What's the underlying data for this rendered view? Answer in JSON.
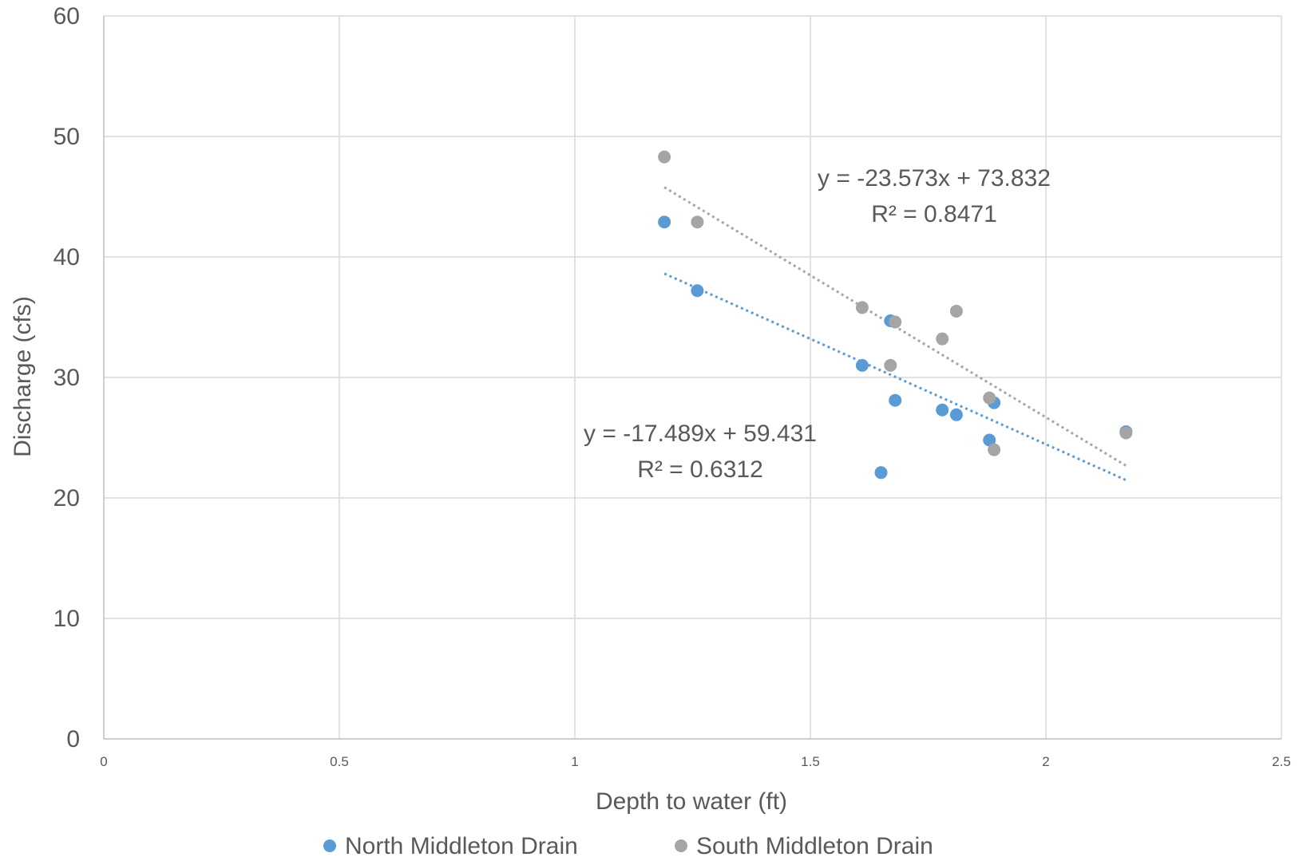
{
  "chart_data": {
    "type": "scatter",
    "xlabel": "Depth to water (ft)",
    "ylabel": "Discharge (cfs)",
    "xlim": [
      0,
      2.5
    ],
    "ylim": [
      0,
      60
    ],
    "x_ticks": [
      0,
      0.5,
      1,
      1.5,
      2,
      2.5
    ],
    "y_ticks": [
      0,
      10,
      20,
      30,
      40,
      50,
      60
    ],
    "x_tick_labels": [
      "0",
      "0.5",
      "1",
      "1.5",
      "2",
      "2.5"
    ],
    "y_tick_labels": [
      "0",
      "10",
      "20",
      "30",
      "40",
      "50",
      "60"
    ],
    "grid": true,
    "legend_position": "bottom",
    "series": [
      {
        "name": "North Middleton Drain",
        "color": "#5b9bd5",
        "points": [
          {
            "x": 1.19,
            "y": 42.9
          },
          {
            "x": 1.26,
            "y": 37.2
          },
          {
            "x": 1.61,
            "y": 31.0
          },
          {
            "x": 1.65,
            "y": 22.1
          },
          {
            "x": 1.67,
            "y": 34.7
          },
          {
            "x": 1.68,
            "y": 28.1
          },
          {
            "x": 1.78,
            "y": 27.3
          },
          {
            "x": 1.81,
            "y": 26.9
          },
          {
            "x": 1.88,
            "y": 24.8
          },
          {
            "x": 1.89,
            "y": 27.9
          },
          {
            "x": 2.17,
            "y": 25.5
          }
        ],
        "trendline": {
          "slope": -17.489,
          "intercept": 59.431,
          "x_range": [
            1.19,
            2.17
          ],
          "style": "dotted"
        },
        "equation_label": "y = -17.489x + 59.431",
        "r2_label": "R² = 0.6312"
      },
      {
        "name": "South Middleton Drain",
        "color": "#a5a5a5",
        "points": [
          {
            "x": 1.19,
            "y": 48.3
          },
          {
            "x": 1.26,
            "y": 42.9
          },
          {
            "x": 1.61,
            "y": 35.8
          },
          {
            "x": 1.67,
            "y": 31.0
          },
          {
            "x": 1.68,
            "y": 34.6
          },
          {
            "x": 1.78,
            "y": 33.2
          },
          {
            "x": 1.81,
            "y": 35.5
          },
          {
            "x": 1.88,
            "y": 28.3
          },
          {
            "x": 1.89,
            "y": 24.0
          },
          {
            "x": 2.17,
            "y": 25.4
          }
        ],
        "trendline": {
          "slope": -23.573,
          "intercept": 73.832,
          "x_range": [
            1.19,
            2.17
          ],
          "style": "dotted"
        },
        "equation_label": "y = -23.573x + 73.832",
        "r2_label": "R² = 0.8471"
      }
    ]
  }
}
